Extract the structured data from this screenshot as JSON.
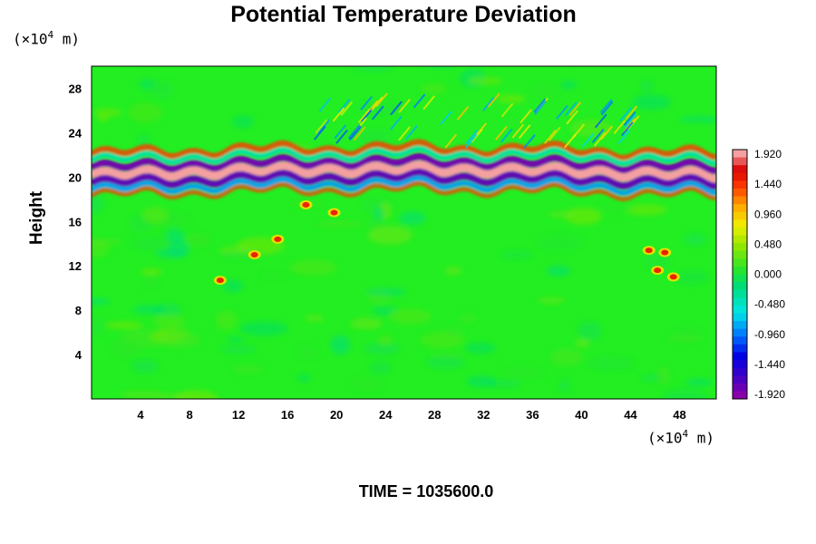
{
  "chart_data": {
    "type": "heatmap",
    "title": "Potential Temperature Deviation",
    "ylabel": "Height",
    "xlabel": "",
    "x_unit": "(×10⁴ m)",
    "y_unit": "(×10⁴ m)",
    "x_ticks": [
      4,
      8,
      12,
      16,
      20,
      24,
      28,
      32,
      36,
      40,
      44,
      48
    ],
    "y_ticks": [
      4,
      8,
      12,
      16,
      20,
      24,
      28
    ],
    "xlim": [
      0,
      51
    ],
    "ylim": [
      0,
      30
    ],
    "colorbar": {
      "range": [
        -1.92,
        1.92
      ],
      "labels": [
        "1.920",
        "1.440",
        "0.960",
        "0.480",
        "0.000",
        "-0.480",
        "-0.960",
        "-1.440",
        "-1.920"
      ],
      "levels": 32
    },
    "footer": "TIME = 1035600.0"
  },
  "colors": {
    "background_field": "#22ee22",
    "warm_max": "#f4a0a0",
    "cold_min": "#8800aa"
  }
}
